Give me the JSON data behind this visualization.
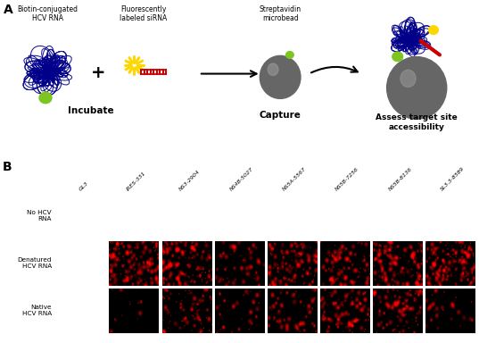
{
  "panel_a_label": "A",
  "panel_b_label": "B",
  "background_color": "#ffffff",
  "grid_columns": [
    "GL3",
    "IRES-331",
    "NS3-2904",
    "NS4B-5027",
    "NS5A-5567",
    "NS5B-7256",
    "NS5B-8136",
    "SL3.3-8589"
  ],
  "grid_rows": [
    "No HCV\nRNA",
    "Denatured\nHCV RNA",
    "Native\nHCV RNA"
  ],
  "cell_intensity": {
    "row0": [
      0.0,
      0.0,
      0.0,
      0.0,
      0.0,
      0.0,
      0.0,
      0.0
    ],
    "row1": [
      0.0,
      0.75,
      0.72,
      0.28,
      0.65,
      0.5,
      0.7,
      0.78
    ],
    "row2": [
      0.0,
      0.08,
      0.45,
      0.18,
      0.32,
      0.48,
      0.52,
      0.15
    ]
  },
  "labels": {
    "biotin_hcv": "Biotin-conjugated\nHCV RNA",
    "fluor_sirna": "Fluorescently\nlabeled siRNA",
    "streptavidin": "Streptavidin\nmicrobead",
    "incubate": "Incubate",
    "capture": "Capture",
    "assess": "Assess target site\naccessibility"
  }
}
